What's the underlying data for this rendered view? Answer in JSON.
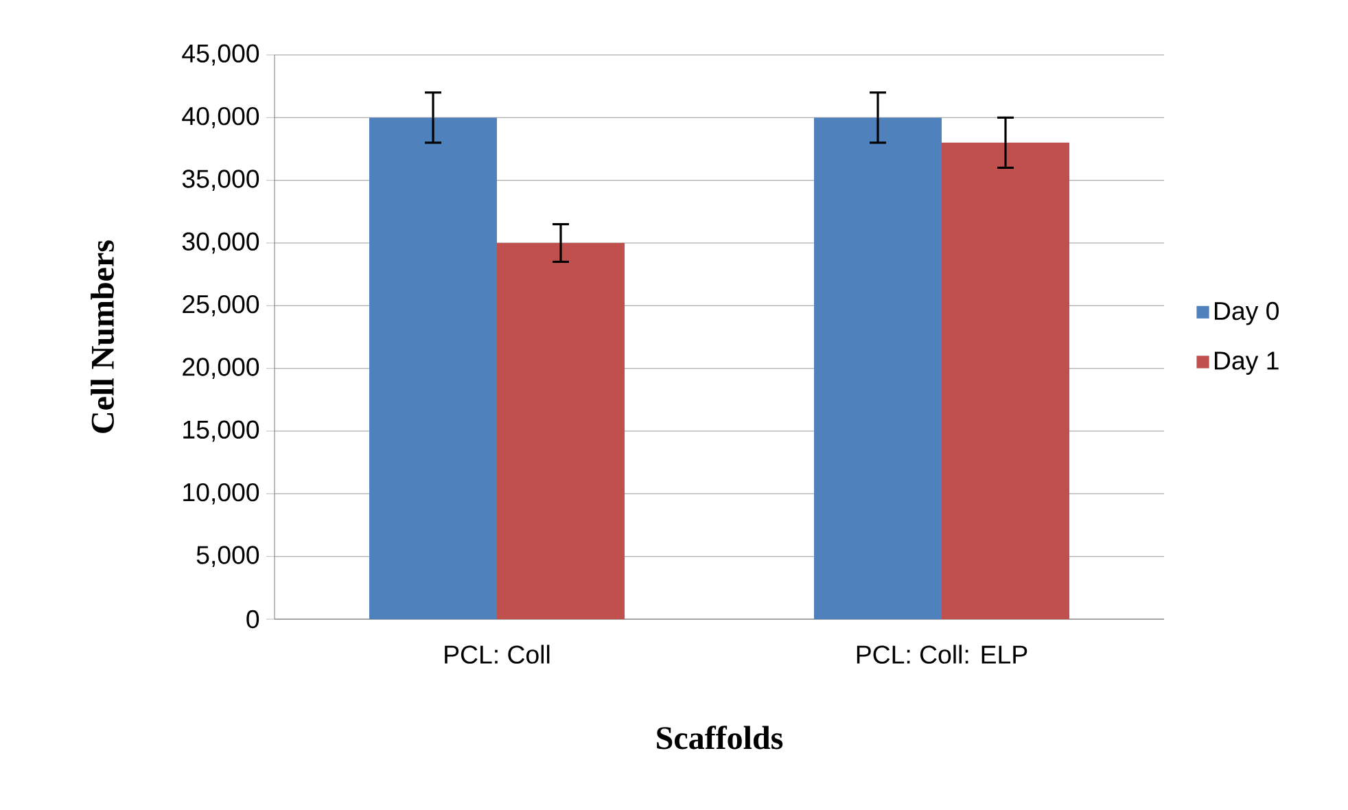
{
  "chart_data": {
    "type": "bar",
    "xlabel": "Scaffolds",
    "ylabel": "Cell Numbers",
    "categories": [
      "PCL: Coll",
      "PCL: Coll: ELP"
    ],
    "series": [
      {
        "name": "Day 0",
        "color": "#4f81bd",
        "values": [
          40000,
          40000
        ],
        "errors": [
          2000,
          2000
        ]
      },
      {
        "name": "Day 1",
        "color": "#c0504d",
        "values": [
          30000,
          38000
        ],
        "errors": [
          1500,
          2000
        ]
      }
    ],
    "ylim": [
      0,
      45000
    ],
    "yticks": [
      {
        "value": 0,
        "label": "0"
      },
      {
        "value": 5000,
        "label": "5,000"
      },
      {
        "value": 10000,
        "label": "10,000"
      },
      {
        "value": 15000,
        "label": "15,000"
      },
      {
        "value": 20000,
        "label": "20,000"
      },
      {
        "value": 25000,
        "label": "25,000"
      },
      {
        "value": 30000,
        "label": "30,000"
      },
      {
        "value": 35000,
        "label": "35,000"
      },
      {
        "value": 40000,
        "label": "40,000"
      },
      {
        "value": 45000,
        "label": "45,000"
      }
    ],
    "grid": "y",
    "legend": "right"
  }
}
